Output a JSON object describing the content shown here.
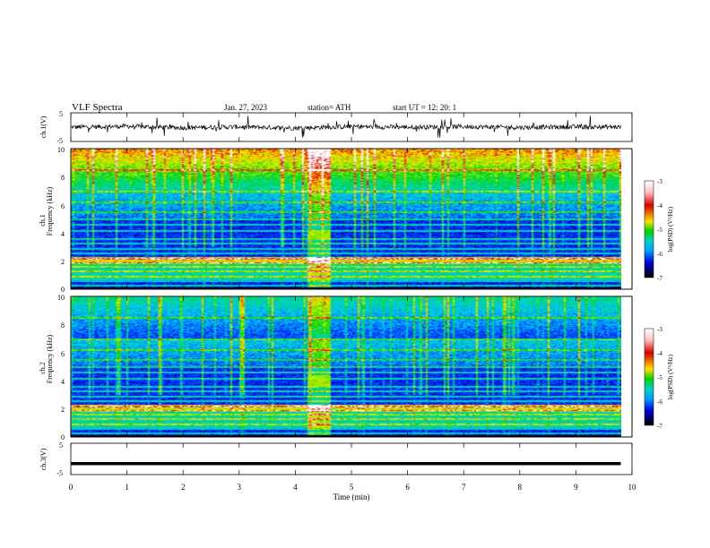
{
  "header": {
    "title": "VLF  Spectra",
    "date": "Jan. 27, 2023",
    "station": "station= ATH",
    "start": "start  UT  =    12: 20: 1"
  },
  "colorbar": {
    "label": "log(PSD) (V²/Hz)",
    "ticks": [
      "-3",
      "-4",
      "-5",
      "-6",
      "-7"
    ],
    "colors": [
      "#ffffff",
      "#d40000",
      "#ffe000",
      "#00d000",
      "#00c0ff",
      "#0000d0",
      "#000000"
    ]
  },
  "chart_data": [
    {
      "type": "line",
      "panel": "ch1",
      "ylabel": "ch.1(V)",
      "ylim": [
        -5,
        5
      ],
      "ytick_labels": [
        "5",
        "-5"
      ],
      "note": "noisy waveform around 0 V with spikes",
      "x": [
        0,
        1,
        2,
        3,
        4,
        5,
        6,
        7,
        8,
        9,
        9.8
      ],
      "y": [
        0,
        0.3,
        -0.2,
        0.1,
        -0.3,
        0.2,
        0,
        0.2,
        -0.1,
        0.1,
        0
      ]
    },
    {
      "type": "heatmap",
      "panel": "ch1",
      "ylabel_top": "ch.1",
      "ylabel": "Frequency  (kHz)",
      "ylim": [
        0,
        10
      ],
      "ytick_labels": [
        "10",
        "8",
        "6",
        "4",
        "2",
        "0"
      ],
      "value_range": [
        -7,
        -3
      ],
      "features": {
        "broadband_burst_min": [
          4.2,
          4.6
        ],
        "burst_band_khz": [
          3.6,
          4.2
        ]
      }
    },
    {
      "type": "heatmap",
      "panel": "ch2",
      "ylabel_top": "ch.2",
      "ylabel": "Frequency  (kHz)",
      "ylim": [
        0,
        10
      ],
      "ytick_labels": [
        "10",
        "8",
        "6",
        "4",
        "2",
        "0"
      ],
      "value_range": [
        -7,
        -3
      ],
      "features": {
        "broadband_burst_min": [
          4.2,
          4.6
        ],
        "burst_band_khz": [
          3.6,
          4.4
        ]
      }
    },
    {
      "type": "line",
      "panel": "ch3",
      "ylabel": "ch.3(V)",
      "ylim": [
        -5,
        5
      ],
      "ytick_labels": [
        "5",
        "-5"
      ],
      "x": [
        0,
        9.8
      ],
      "y": [
        -1.5,
        -1.5
      ]
    }
  ],
  "xaxis": {
    "label": "Time  (min)",
    "ticks": [
      "0",
      "1",
      "2",
      "3",
      "4",
      "5",
      "6",
      "7",
      "8",
      "9",
      "10"
    ],
    "xlim": [
      0,
      10
    ]
  }
}
